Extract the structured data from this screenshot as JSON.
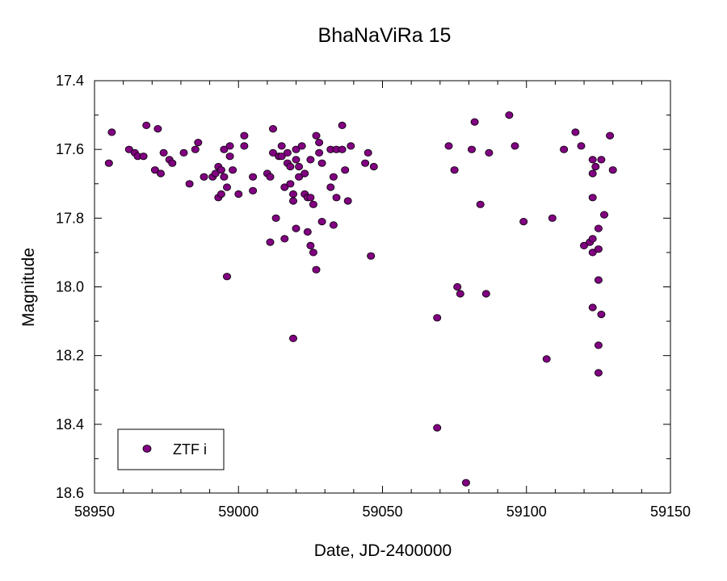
{
  "chart_data": {
    "type": "scatter",
    "title": "BhaNaViRa 15",
    "xlabel": "Date, JD-2400000",
    "ylabel": "Magnitude",
    "xlim": [
      58950,
      59150
    ],
    "ylim": [
      17.4,
      18.6
    ],
    "y_inverted": true,
    "x_ticks": [
      "58950",
      "59000",
      "59050",
      "59100",
      "59150"
    ],
    "y_ticks": [
      "17.4",
      "17.6",
      "17.8",
      "18.0",
      "18.2",
      "18.4",
      "18.6"
    ],
    "grid": false,
    "legend_position": "bottom-left",
    "series": [
      {
        "name": "ZTF i",
        "color": "#800080",
        "points": [
          [
            58955,
            17.64
          ],
          [
            58956,
            17.55
          ],
          [
            58962,
            17.6
          ],
          [
            58964,
            17.61
          ],
          [
            58965,
            17.62
          ],
          [
            58967,
            17.62
          ],
          [
            58968,
            17.53
          ],
          [
            58971,
            17.66
          ],
          [
            58972,
            17.54
          ],
          [
            58973,
            17.67
          ],
          [
            58974,
            17.61
          ],
          [
            58976,
            17.63
          ],
          [
            58977,
            17.64
          ],
          [
            58981,
            17.61
          ],
          [
            58983,
            17.7
          ],
          [
            58985,
            17.6
          ],
          [
            58986,
            17.58
          ],
          [
            58988,
            17.68
          ],
          [
            58991,
            17.68
          ],
          [
            58992,
            17.67
          ],
          [
            58993,
            17.74
          ],
          [
            58993,
            17.65
          ],
          [
            58994,
            17.73
          ],
          [
            58994,
            17.66
          ],
          [
            58995,
            17.68
          ],
          [
            58995,
            17.6
          ],
          [
            58996,
            17.71
          ],
          [
            58996,
            17.97
          ],
          [
            58997,
            17.59
          ],
          [
            58997,
            17.62
          ],
          [
            58998,
            17.66
          ],
          [
            59000,
            17.73
          ],
          [
            59002,
            17.56
          ],
          [
            59002,
            17.59
          ],
          [
            59005,
            17.68
          ],
          [
            59005,
            17.72
          ],
          [
            59010,
            17.67
          ],
          [
            59011,
            17.87
          ],
          [
            59011,
            17.68
          ],
          [
            59012,
            17.61
          ],
          [
            59012,
            17.54
          ],
          [
            59013,
            17.8
          ],
          [
            59014,
            17.62
          ],
          [
            59015,
            17.59
          ],
          [
            59015,
            17.62
          ],
          [
            59016,
            17.71
          ],
          [
            59016,
            17.86
          ],
          [
            59017,
            17.64
          ],
          [
            59017,
            17.61
          ],
          [
            59018,
            17.65
          ],
          [
            59018,
            17.7
          ],
          [
            59019,
            17.73
          ],
          [
            59019,
            17.75
          ],
          [
            59019,
            18.15
          ],
          [
            59020,
            17.83
          ],
          [
            59020,
            17.63
          ],
          [
            59020,
            17.6
          ],
          [
            59021,
            17.65
          ],
          [
            59021,
            17.68
          ],
          [
            59022,
            17.59
          ],
          [
            59023,
            17.67
          ],
          [
            59023,
            17.73
          ],
          [
            59024,
            17.84
          ],
          [
            59024,
            17.74
          ],
          [
            59025,
            17.74
          ],
          [
            59025,
            17.88
          ],
          [
            59025,
            17.63
          ],
          [
            59026,
            17.76
          ],
          [
            59026,
            17.9
          ],
          [
            59027,
            17.56
          ],
          [
            59027,
            17.95
          ],
          [
            59028,
            17.61
          ],
          [
            59028,
            17.58
          ],
          [
            59029,
            17.64
          ],
          [
            59029,
            17.81
          ],
          [
            59032,
            17.6
          ],
          [
            59032,
            17.71
          ],
          [
            59033,
            17.68
          ],
          [
            59033,
            17.82
          ],
          [
            59034,
            17.6
          ],
          [
            59034,
            17.74
          ],
          [
            59036,
            17.53
          ],
          [
            59036,
            17.6
          ],
          [
            59037,
            17.66
          ],
          [
            59038,
            17.75
          ],
          [
            59039,
            17.59
          ],
          [
            59044,
            17.64
          ],
          [
            59045,
            17.61
          ],
          [
            59046,
            17.91
          ],
          [
            59047,
            17.65
          ],
          [
            59069,
            18.09
          ],
          [
            59069,
            18.41
          ],
          [
            59073,
            17.59
          ],
          [
            59075,
            17.66
          ],
          [
            59076,
            18.0
          ],
          [
            59077,
            18.02
          ],
          [
            59079,
            18.57
          ],
          [
            59081,
            17.6
          ],
          [
            59082,
            17.52
          ],
          [
            59084,
            17.76
          ],
          [
            59086,
            18.02
          ],
          [
            59087,
            17.61
          ],
          [
            59094,
            17.5
          ],
          [
            59096,
            17.59
          ],
          [
            59099,
            17.81
          ],
          [
            59107,
            18.21
          ],
          [
            59109,
            17.8
          ],
          [
            59113,
            17.6
          ],
          [
            59117,
            17.55
          ],
          [
            59119,
            17.59
          ],
          [
            59120,
            17.88
          ],
          [
            59122,
            17.87
          ],
          [
            59123,
            17.63
          ],
          [
            59123,
            17.67
          ],
          [
            59123,
            17.74
          ],
          [
            59123,
            17.86
          ],
          [
            59123,
            17.9
          ],
          [
            59123,
            18.06
          ],
          [
            59124,
            17.65
          ],
          [
            59125,
            17.83
          ],
          [
            59125,
            17.89
          ],
          [
            59125,
            17.98
          ],
          [
            59125,
            18.17
          ],
          [
            59125,
            18.25
          ],
          [
            59126,
            18.08
          ],
          [
            59126,
            17.63
          ],
          [
            59127,
            17.79
          ],
          [
            59129,
            17.56
          ],
          [
            59130,
            17.66
          ]
        ]
      }
    ]
  }
}
